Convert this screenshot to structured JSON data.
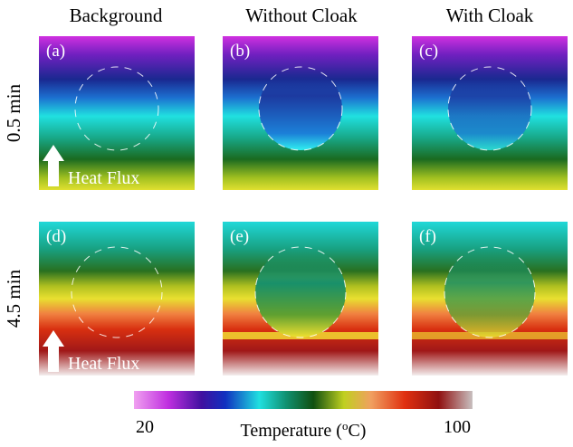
{
  "column_headers": [
    "Background",
    "Without Cloak",
    "With Cloak"
  ],
  "row_labels": [
    "0.5 min",
    "4.5 min"
  ],
  "panels": [
    "(a)",
    "(b)",
    "(c)",
    "(d)",
    "(e)",
    "(f)"
  ],
  "annotations": [
    "Heat Flux",
    "Heat Flux"
  ],
  "colorbar": {
    "min_label": "20",
    "max_label": "100",
    "title_prefix": "Temperature (",
    "title_sup": "o",
    "title_suffix": "C)"
  }
}
